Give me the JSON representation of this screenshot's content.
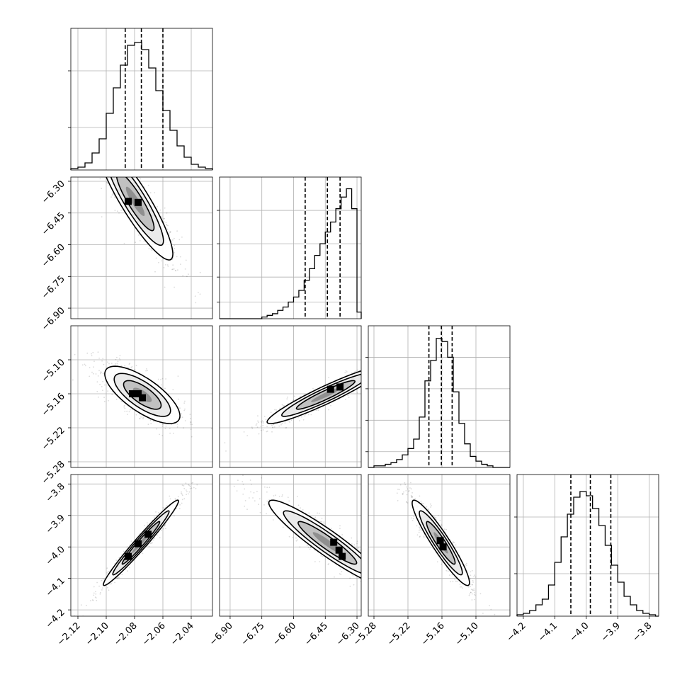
{
  "chart_data": {
    "type": "corner",
    "title": "",
    "grid": true,
    "parameters": [
      {
        "index": 0,
        "range": [
          -2.125,
          -2.025
        ],
        "ticks": [
          -2.12,
          -2.1,
          -2.08,
          -2.06,
          -2.04
        ],
        "tick_labels": [
          "−2.12",
          "−2.10",
          "−2.08",
          "−2.06",
          "−2.04"
        ],
        "quantiles": [
          -2.0866,
          -2.0752,
          -2.06
        ],
        "histogram": {
          "bin_edges": [
            -2.125,
            -2.12,
            -2.115,
            -2.11,
            -2.105,
            -2.1,
            -2.095,
            -2.09,
            -2.085,
            -2.08,
            -2.075,
            -2.07,
            -2.065,
            -2.06,
            -2.055,
            -2.05,
            -2.045,
            -2.04,
            -2.035,
            -2.03,
            -2.025
          ],
          "counts": [
            1,
            2,
            5,
            12,
            22,
            40,
            58,
            74,
            88,
            90,
            85,
            72,
            56,
            42,
            28,
            17,
            9,
            4,
            2,
            1
          ],
          "hist_max": 100,
          "grid_ticks": [
            30,
            70
          ]
        }
      },
      {
        "index": 1,
        "range": [
          -6.95,
          -6.28
        ],
        "ticks": [
          -6.9,
          -6.75,
          -6.6,
          -6.45,
          -6.3
        ],
        "tick_labels": [
          "−6.90",
          "−6.75",
          "−6.60",
          "−6.45",
          "−6.30"
        ],
        "quantiles": [
          -6.545,
          -6.44,
          -6.38
        ],
        "histogram": {
          "bin_edges": [
            -6.95,
            -6.925,
            -6.9,
            -6.875,
            -6.85,
            -6.825,
            -6.8,
            -6.775,
            -6.75,
            -6.725,
            -6.7,
            -6.675,
            -6.65,
            -6.625,
            -6.6,
            -6.575,
            -6.55,
            -6.525,
            -6.5,
            -6.475,
            -6.45,
            -6.425,
            -6.4,
            -6.375,
            -6.35,
            -6.325,
            -6.3,
            -6.28
          ],
          "counts": [
            0,
            0,
            0,
            0,
            0,
            0,
            0,
            0,
            1,
            2,
            3,
            5,
            7,
            10,
            13,
            17,
            23,
            30,
            38,
            45,
            52,
            58,
            66,
            73,
            78,
            66,
            4
          ],
          "hist_max": 85,
          "grid_ticks": [
            10,
            25,
            45,
            65
          ]
        }
      },
      {
        "index": 2,
        "range": [
          -5.29,
          -5.04
        ],
        "ticks": [
          -5.28,
          -5.22,
          -5.16,
          -5.1
        ],
        "tick_labels": [
          "−5.28",
          "−5.22",
          "−5.16",
          "−5.10"
        ],
        "quantiles": [
          -5.183,
          -5.161,
          -5.142
        ],
        "histogram": {
          "bin_edges": [
            -5.29,
            -5.28,
            -5.27,
            -5.26,
            -5.25,
            -5.24,
            -5.23,
            -5.22,
            -5.21,
            -5.2,
            -5.19,
            -5.18,
            -5.17,
            -5.16,
            -5.15,
            -5.14,
            -5.13,
            -5.12,
            -5.11,
            -5.1,
            -5.09,
            -5.08,
            -5.07,
            -5.06,
            -5.05,
            -5.04
          ],
          "counts": [
            0,
            1,
            1,
            2,
            3,
            5,
            8,
            12,
            18,
            32,
            55,
            68,
            82,
            80,
            70,
            48,
            28,
            15,
            7,
            4,
            2,
            1,
            0,
            0,
            0
          ],
          "hist_max": 90,
          "grid_ticks": [
            10,
            30,
            50,
            70
          ]
        }
      },
      {
        "index": 3,
        "range": [
          -4.22,
          -3.77
        ],
        "ticks": [
          -4.2,
          -4.1,
          -4.0,
          -3.9,
          -3.8
        ],
        "tick_labels": [
          "−4.2",
          "−4.1",
          "−4.0",
          "−3.9",
          "−3.8"
        ],
        "quantiles": [
          -4.049,
          -3.987,
          -3.922
        ],
        "histogram": {
          "bin_edges": [
            -4.22,
            -4.2,
            -4.18,
            -4.16,
            -4.14,
            -4.12,
            -4.1,
            -4.08,
            -4.06,
            -4.04,
            -4.02,
            -4.0,
            -3.98,
            -3.96,
            -3.94,
            -3.92,
            -3.9,
            -3.88,
            -3.86,
            -3.84,
            -3.82,
            -3.8,
            -3.78,
            -3.77
          ],
          "counts": [
            1,
            2,
            4,
            8,
            12,
            22,
            38,
            56,
            72,
            84,
            88,
            85,
            76,
            64,
            50,
            36,
            24,
            14,
            8,
            4,
            2,
            1,
            0
          ],
          "hist_max": 100,
          "grid_ticks": [
            30,
            70
          ]
        }
      }
    ],
    "pairs": [
      {
        "x": 0,
        "y": 1,
        "center": [
          -2.0795,
          -6.395
        ],
        "cov": [
          [
            0.000176,
            -0.00165
          ],
          [
            -0.00165,
            0.0192
          ]
        ],
        "peak_cells": [
          [
            -2.0845,
            -6.395
          ],
          [
            -2.0775,
            -6.4
          ]
        ]
      },
      {
        "x": 0,
        "y": 2,
        "center": [
          -2.0745,
          -5.162
        ],
        "cov": [
          [
            0.000176,
            -0.000245
          ],
          [
            -0.000245,
            0.00064
          ]
        ],
        "peak_cells": [
          [
            -2.0815,
            -5.16
          ],
          [
            -2.0775,
            -5.16
          ],
          [
            -2.0745,
            -5.167
          ]
        ]
      },
      {
        "x": 1,
        "y": 2,
        "center": [
          -6.448,
          -5.162
        ],
        "cov": [
          [
            0.0192,
            0.0033
          ],
          [
            0.0033,
            0.00064
          ]
        ],
        "peak_cells": [
          [
            -6.425,
            -5.152
          ],
          [
            -6.38,
            -5.148
          ]
        ]
      },
      {
        "x": 0,
        "y": 3,
        "center": [
          -2.0755,
          -3.987
        ],
        "cov": [
          [
            0.000176,
            0.00088
          ],
          [
            0.00088,
            0.0046
          ]
        ],
        "peak_cells": [
          [
            -2.0845,
            -4.03
          ],
          [
            -2.0775,
            -3.99
          ],
          [
            -2.0705,
            -3.96
          ]
        ]
      },
      {
        "x": 1,
        "y": 3,
        "center": [
          -6.44,
          -3.987
        ],
        "cov": [
          [
            0.0192,
            -0.0088
          ],
          [
            -0.0088,
            0.0046
          ]
        ],
        "peak_cells": [
          [
            -6.41,
            -3.985
          ],
          [
            -6.385,
            -4.01
          ],
          [
            -6.37,
            -4.03
          ]
        ]
      },
      {
        "x": 2,
        "y": 3,
        "center": [
          -5.162,
          -3.987
        ],
        "cov": [
          [
            0.00064,
            -0.0016
          ],
          [
            -0.0016,
            0.0046
          ]
        ],
        "peak_cells": [
          [
            -5.163,
            -3.98
          ],
          [
            -5.158,
            -4.0
          ]
        ]
      }
    ],
    "contour_levels_sigma": [
      0.5,
      1.0,
      1.5,
      2.0
    ]
  }
}
